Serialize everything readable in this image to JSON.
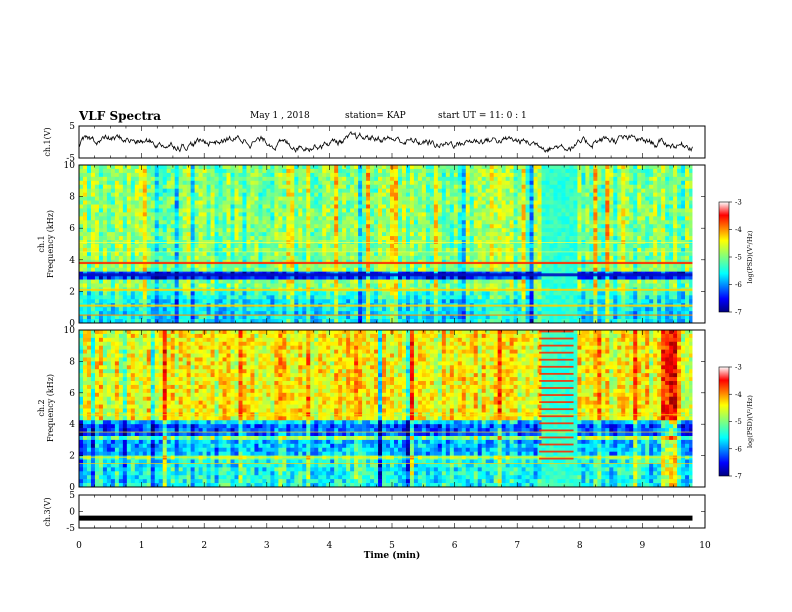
{
  "header": {
    "title": "VLF Spectra",
    "date": "May 1 , 2018",
    "station": "station= KAP",
    "start": "start UT = 11: 0 : 1"
  },
  "chart_data": [
    {
      "type": "line",
      "panel": "ch1-waveform",
      "ylabel": "ch.1(V)",
      "ylim": [
        -5,
        5
      ],
      "yticks": [
        "5",
        "-5"
      ],
      "xlim": [
        0,
        10
      ],
      "note_values": "noisy waveform fluctuating roughly between -2 and 2 V across 0–9.8 min"
    },
    {
      "type": "heatmap",
      "panel": "ch1-spectrogram",
      "ylabel": "ch.1 Frequency (kHz)",
      "ylim": [
        0,
        10
      ],
      "yticks": [
        "0",
        "2",
        "4",
        "6",
        "8",
        "10"
      ],
      "xlim": [
        0,
        10
      ],
      "colorbar": {
        "label": "log(PSD)(V²/Hz)",
        "range": [
          -7,
          -3
        ],
        "ticks": [
          "-3",
          "-4",
          "-5",
          "-6",
          "-7"
        ]
      },
      "bands_khz": [
        3.8,
        3.0,
        2.1,
        1.1,
        0.5
      ],
      "note": "strong horizontal lines near 3.8, 2.1 and 1.1 kHz; weak (blue) band near 3.0 kHz; disturbance 7.3–7.9 min"
    },
    {
      "type": "heatmap",
      "panel": "ch2-spectrogram",
      "ylabel": "ch.2 Frequency (kHz)",
      "ylim": [
        0,
        10
      ],
      "yticks": [
        "0",
        "2",
        "4",
        "6",
        "8",
        "10"
      ],
      "xlim": [
        0,
        10
      ],
      "colorbar": {
        "label": "log(PSD)(V²/Hz)",
        "range": [
          -7,
          -3
        ],
        "ticks": [
          "-3",
          "-4",
          "-5",
          "-6",
          "-7"
        ]
      },
      "note": "higher intensity above 4 kHz; repeated narrow bands 7.3–7.9 min; bright burst near 9.3–9.5 min"
    },
    {
      "type": "line",
      "panel": "ch3-waveform",
      "ylabel": "ch.3(V)",
      "ylim": [
        -5,
        5
      ],
      "yticks": [
        "5",
        "0",
        "-5"
      ],
      "xlim": [
        0,
        10
      ],
      "series": [
        {
          "x": [
            0,
            9.8
          ],
          "y": [
            -2,
            -2
          ]
        }
      ]
    }
  ],
  "xaxis": {
    "label": "Time (min)",
    "ticks": [
      "0",
      "1",
      "2",
      "3",
      "4",
      "5",
      "6",
      "7",
      "8",
      "9",
      "10"
    ]
  }
}
